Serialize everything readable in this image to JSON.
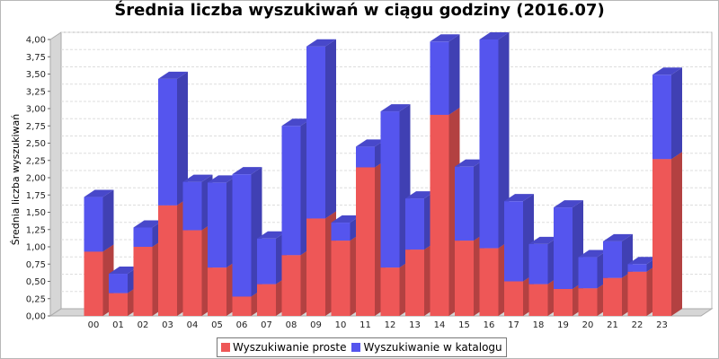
{
  "chart_data": {
    "type": "bar",
    "stacked": true,
    "three_d": true,
    "title": "Średnia liczba wyszukiwań w ciągu godziny (2016.07)",
    "xlabel": "",
    "ylabel": "Średnia liczba wyszukiwań",
    "ylim": [
      0,
      4.0
    ],
    "yticks": [
      "0,00",
      "0,25",
      "0,50",
      "0,75",
      "1,00",
      "1,25",
      "1,50",
      "1,75",
      "2,00",
      "2,25",
      "2,50",
      "2,75",
      "3,00",
      "3,25",
      "3,50",
      "3,75",
      "4,00"
    ],
    "categories": [
      "00",
      "01",
      "02",
      "03",
      "04",
      "05",
      "06",
      "07",
      "08",
      "09",
      "10",
      "11",
      "12",
      "13",
      "14",
      "15",
      "16",
      "17",
      "18",
      "19",
      "20",
      "21",
      "22",
      "23"
    ],
    "series": [
      {
        "name": "Wyszukiwanie proste",
        "color": "#ee5757",
        "values": [
          0.93,
          0.33,
          1.0,
          1.6,
          1.24,
          0.7,
          0.28,
          0.46,
          0.88,
          1.41,
          1.09,
          2.15,
          0.7,
          0.96,
          2.91,
          1.09,
          0.98,
          0.5,
          0.46,
          0.39,
          0.4,
          0.55,
          0.64,
          2.27
        ]
      },
      {
        "name": "Wyszukiwanie w katalogu",
        "color": "#5555ee",
        "values": [
          0.79,
          0.28,
          0.28,
          1.83,
          0.7,
          1.23,
          1.77,
          0.66,
          1.87,
          2.49,
          0.26,
          0.3,
          2.26,
          0.74,
          1.06,
          1.07,
          3.02,
          1.16,
          0.58,
          1.18,
          0.45,
          0.53,
          0.11,
          1.22
        ]
      }
    ],
    "grid": true,
    "legend_position": "bottom"
  }
}
